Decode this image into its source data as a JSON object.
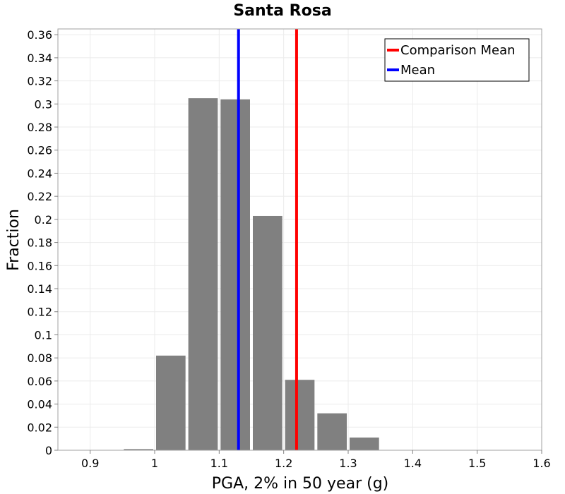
{
  "chart_data": {
    "type": "bar",
    "title": "Santa Rosa",
    "xlabel": "PGA, 2% in 50 year (g)",
    "ylabel": "Fraction",
    "xlim": [
      0.85,
      1.6
    ],
    "ylim": [
      0,
      0.365
    ],
    "xticks": [
      0.9,
      1,
      1.1,
      1.2,
      1.3,
      1.4,
      1.5,
      1.6
    ],
    "xtick_labels": [
      "0.9",
      "1",
      "1.1",
      "1.2",
      "1.3",
      "1.4",
      "1.5",
      "1.6"
    ],
    "yticks": [
      0,
      0.02,
      0.04,
      0.06,
      0.08,
      0.1,
      0.12,
      0.14,
      0.16,
      0.18,
      0.2,
      0.22,
      0.24,
      0.26,
      0.28,
      0.3,
      0.32,
      0.34,
      0.36
    ],
    "ytick_labels": [
      "0",
      "0.02",
      "0.04",
      "0.06",
      "0.08",
      "0.1",
      "0.12",
      "0.14",
      "0.16",
      "0.18",
      "0.2",
      "0.22",
      "0.24",
      "0.26",
      "0.28",
      "0.3",
      "0.32",
      "0.34",
      "0.36"
    ],
    "bin_width": 0.05,
    "bins": [
      {
        "center": 0.975,
        "value": 0.001
      },
      {
        "center": 1.025,
        "value": 0.082
      },
      {
        "center": 1.075,
        "value": 0.305
      },
      {
        "center": 1.125,
        "value": 0.304
      },
      {
        "center": 1.175,
        "value": 0.203
      },
      {
        "center": 1.225,
        "value": 0.061
      },
      {
        "center": 1.275,
        "value": 0.032
      },
      {
        "center": 1.325,
        "value": 0.011
      }
    ],
    "bar_color": "#808080",
    "reference_lines": [
      {
        "name": "Comparison Mean",
        "x": 1.22,
        "color": "#ff0000"
      },
      {
        "name": "Mean",
        "x": 1.13,
        "color": "#0000ff"
      }
    ],
    "legend": {
      "position": "top-right",
      "entries": [
        {
          "label": "Comparison Mean",
          "color": "#ff0000"
        },
        {
          "label": "Mean",
          "color": "#0000ff"
        }
      ]
    },
    "grid": true
  }
}
